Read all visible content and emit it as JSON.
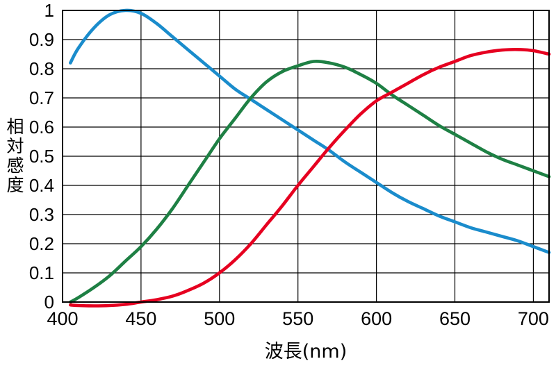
{
  "chart_data": {
    "type": "line",
    "title": "",
    "xlabel": "波長(nm)",
    "ylabel": "相対感度",
    "xlim": [
      400,
      710
    ],
    "ylim": [
      0,
      1
    ],
    "x_ticks": [
      400,
      450,
      500,
      550,
      600,
      650,
      700
    ],
    "y_ticks": [
      0,
      0.1,
      0.2,
      0.3,
      0.4,
      0.5,
      0.6,
      0.7,
      0.8,
      0.9,
      1
    ],
    "grid": true,
    "legend": false,
    "grid_color": "#000000",
    "border_color": "#000000",
    "x": [
      405,
      410,
      420,
      430,
      440,
      450,
      460,
      470,
      480,
      490,
      500,
      510,
      520,
      530,
      540,
      550,
      560,
      570,
      580,
      590,
      600,
      610,
      620,
      630,
      640,
      650,
      660,
      670,
      680,
      690,
      700,
      710
    ],
    "series": [
      {
        "name": "blue",
        "color": "#1a8ccc",
        "values": [
          0.82,
          0.87,
          0.94,
          0.985,
          1.0,
          0.99,
          0.955,
          0.91,
          0.865,
          0.82,
          0.775,
          0.73,
          0.695,
          0.66,
          0.625,
          0.59,
          0.555,
          0.52,
          0.48,
          0.445,
          0.41,
          0.375,
          0.345,
          0.32,
          0.295,
          0.275,
          0.255,
          0.24,
          0.225,
          0.21,
          0.19,
          0.17
        ]
      },
      {
        "name": "green",
        "color": "#1e8044",
        "values": [
          0.0,
          0.015,
          0.05,
          0.09,
          0.14,
          0.19,
          0.25,
          0.32,
          0.4,
          0.48,
          0.56,
          0.63,
          0.7,
          0.755,
          0.79,
          0.81,
          0.825,
          0.82,
          0.805,
          0.78,
          0.75,
          0.71,
          0.675,
          0.64,
          0.605,
          0.575,
          0.545,
          0.515,
          0.49,
          0.47,
          0.45,
          0.43
        ]
      },
      {
        "name": "red",
        "color": "#e60020",
        "values": [
          -0.01,
          -0.012,
          -0.013,
          -0.012,
          -0.008,
          0.0,
          0.008,
          0.02,
          0.04,
          0.065,
          0.1,
          0.145,
          0.2,
          0.265,
          0.33,
          0.4,
          0.465,
          0.53,
          0.59,
          0.645,
          0.69,
          0.72,
          0.75,
          0.78,
          0.805,
          0.825,
          0.845,
          0.857,
          0.864,
          0.866,
          0.862,
          0.85
        ]
      }
    ]
  }
}
